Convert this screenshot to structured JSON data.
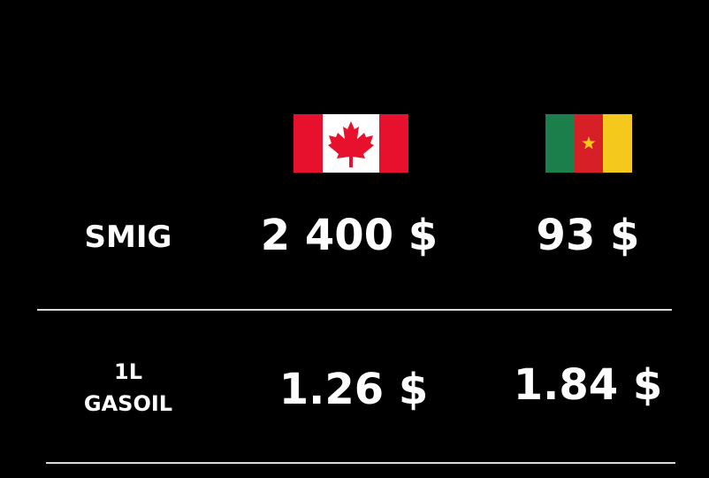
{
  "columns": [
    {
      "country_flag": "canada-flag-icon"
    },
    {
      "country_flag": "cameroon-flag-icon"
    }
  ],
  "rows": [
    {
      "label_lines": [
        "SMIG"
      ],
      "values": [
        "2 400 $",
        "93 $"
      ]
    },
    {
      "label_lines": [
        "1L",
        "GASOIL"
      ],
      "values": [
        "1.26 $",
        "1.84 $"
      ]
    }
  ],
  "colors": {
    "background": "#000000",
    "text": "#ffffff",
    "divider": "#d9d9d9",
    "canada_red": "#e8112d",
    "cameroon_green": "#1a7f4b",
    "cameroon_red": "#d61f26",
    "cameroon_yellow": "#f4c81d"
  }
}
